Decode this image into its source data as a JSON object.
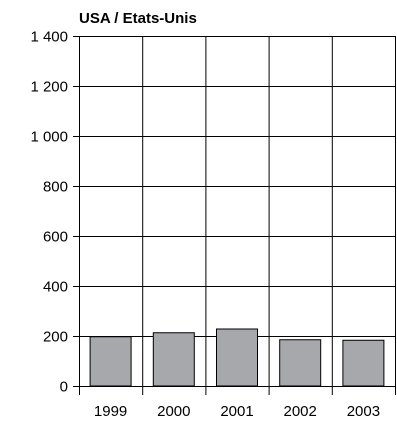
{
  "chart_data": {
    "type": "bar",
    "title": "USA / Etats-Unis",
    "xlabel": "",
    "ylabel": "",
    "categories": [
      "1999",
      "2000",
      "2001",
      "2002",
      "2003"
    ],
    "values": [
      197,
      213,
      228,
      185,
      183
    ],
    "ylim": [
      0,
      1400
    ],
    "yticks": [
      0,
      200,
      400,
      600,
      800,
      1000,
      1200,
      1400
    ],
    "ytick_labels": [
      "0",
      "200",
      "400",
      "600",
      "800",
      "1 000",
      "1 200",
      "1 400"
    ],
    "grid": true,
    "legend": "none",
    "bar_color": "#a7a8ac",
    "bar_edge_color": "#000000"
  }
}
